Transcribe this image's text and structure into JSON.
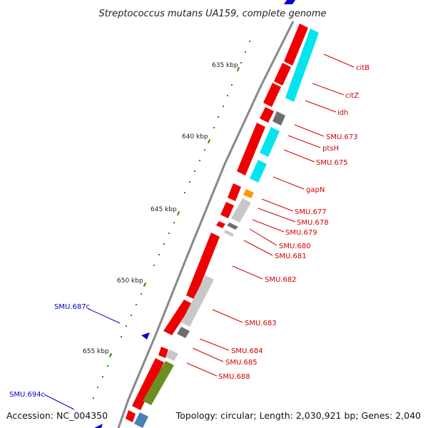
{
  "title": "Streptococcus mutans UA159, complete genome",
  "footer": {
    "accession": "Accession: NC_004350",
    "topology": "Topology: circular; Length: 2,030,921 bp; Genes: 2,040"
  },
  "scale_labels": [
    "635 kbp",
    "640 kbp",
    "645 kbp",
    "650 kbp",
    "655 kbp"
  ],
  "gene_labels": {
    "forward": [
      "citB",
      "citZ",
      "idh",
      "SMU.673",
      "ptsH",
      "SMU.675",
      "gapN",
      "SMU.677",
      "SMU.678",
      "SMU.679",
      "SMU.680",
      "SMU.681",
      "SMU.682",
      "SMU.683",
      "SMU.684",
      "SMU.685",
      "SMU.688"
    ],
    "reverse": [
      "SMU.687c",
      "SMU.694c"
    ]
  },
  "colors": {
    "forward_label": "#d40000",
    "reverse_label": "#0000c8",
    "gene": "#ee0000",
    "cyan": "#00e5ee",
    "gray": "#c8c8c8",
    "dark_gray": "#6e6e6e",
    "orange": "#ff9900",
    "olive": "#6b8e23",
    "steel_blue": "#4682b4",
    "tick": "#2e8b00"
  }
}
